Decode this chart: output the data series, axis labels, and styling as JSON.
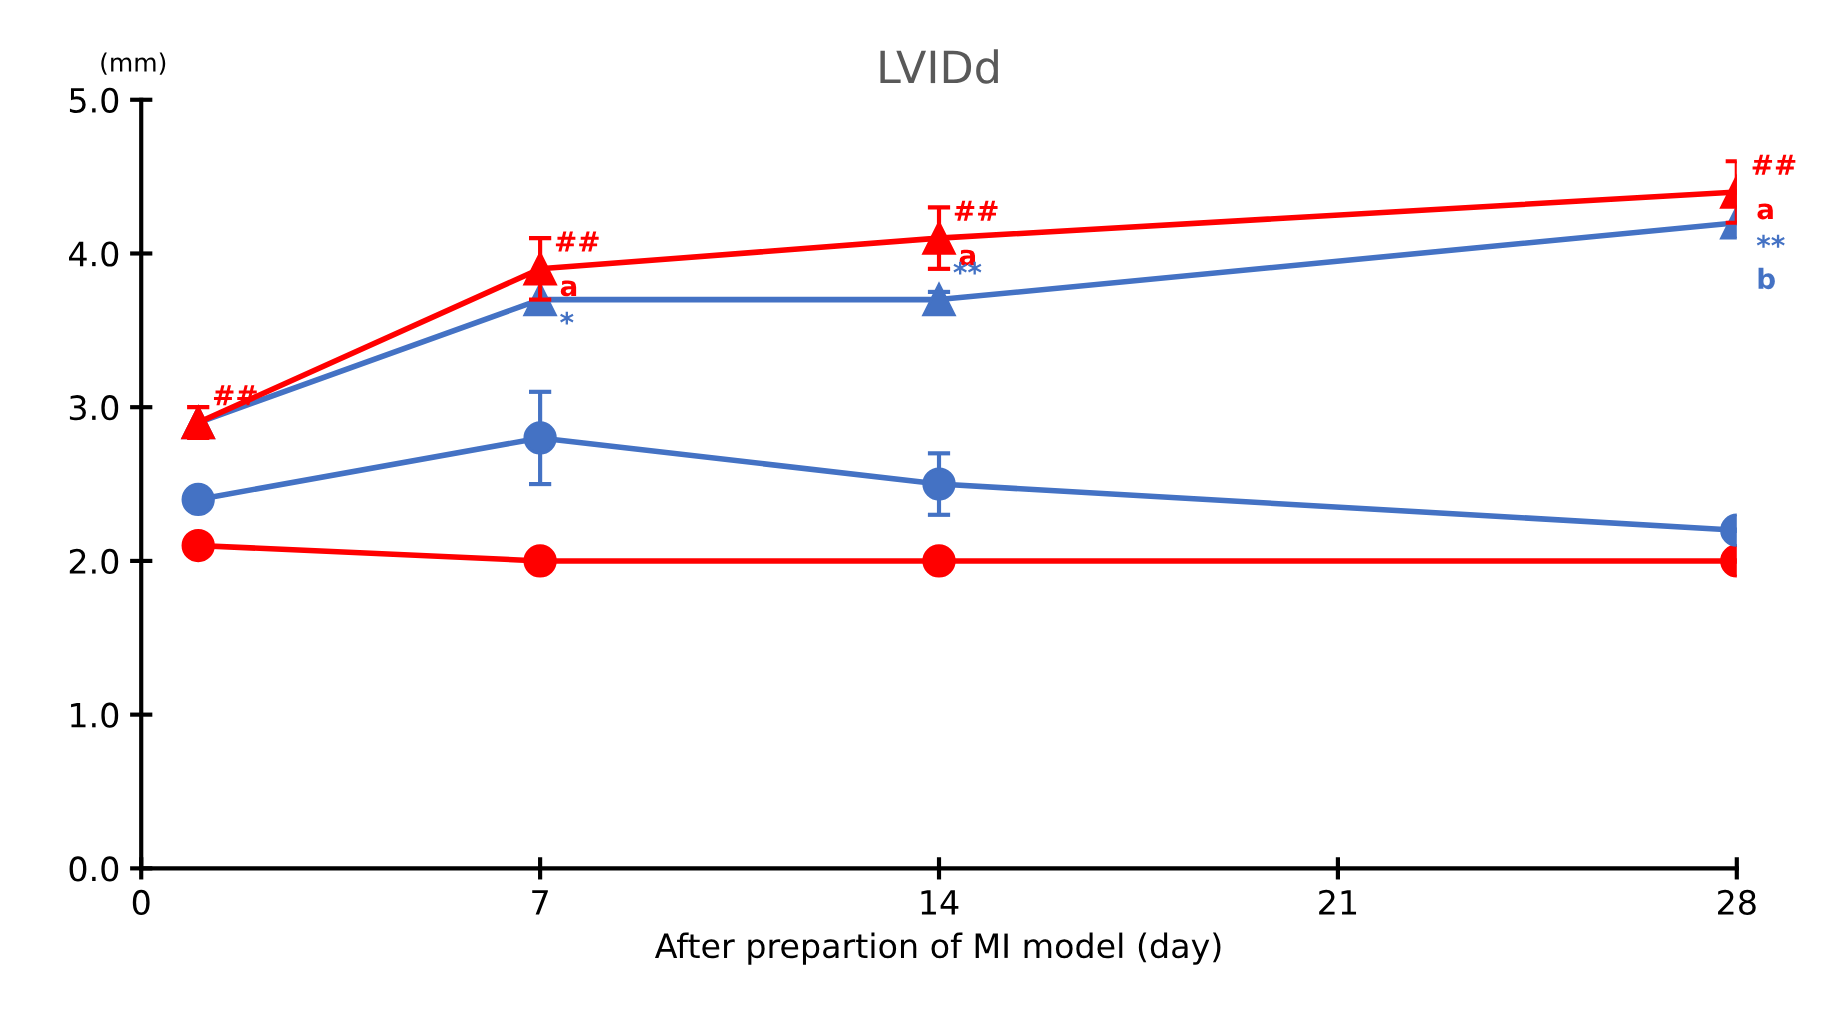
{
  "chart_data": {
    "type": "line",
    "title": "LVIDd",
    "xlabel": "After prepartion of MI model (day)",
    "ylabel": "(mm)",
    "x": [
      1,
      7,
      14,
      28
    ],
    "series": [
      {
        "color": "#ff0000",
        "marker": "triangle",
        "values": [
          2.9,
          3.9,
          4.1,
          4.4
        ],
        "errors": [
          0.1,
          0.2,
          0.2,
          0.2
        ]
      },
      {
        "color": "#4472c4",
        "marker": "triangle",
        "values": [
          2.9,
          3.7,
          3.7,
          4.2
        ],
        "errors": [
          null,
          null,
          0.05,
          null
        ]
      },
      {
        "color": "#4472c4",
        "marker": "circle",
        "values": [
          2.4,
          2.8,
          2.5,
          2.2
        ],
        "errors": [
          null,
          0.3,
          0.2,
          null
        ]
      },
      {
        "color": "#ff0000",
        "marker": "circle",
        "values": [
          2.1,
          2.0,
          2.0,
          2.0
        ],
        "errors": [
          null,
          null,
          null,
          null
        ]
      }
    ],
    "xlim": [
      0,
      28
    ],
    "xticks": [
      0,
      7,
      14,
      21,
      28
    ],
    "ylim": [
      0,
      5
    ],
    "yticks": [
      {
        "value": 0,
        "label": "0.0"
      },
      {
        "value": 1,
        "label": "1.0"
      },
      {
        "value": 2,
        "label": "2.0"
      },
      {
        "value": 3,
        "label": "3.0"
      },
      {
        "value": 4,
        "label": "4.0"
      },
      {
        "value": 5,
        "label": "5.0"
      }
    ],
    "grid": false,
    "legend": false,
    "annotations": [
      {
        "text": "##",
        "x": 1,
        "y": 2.9
      },
      {
        "text": "##",
        "x": 7,
        "y": 3.9
      },
      {
        "text": "a",
        "x": 7,
        "y": 3.9
      },
      {
        "text": "##",
        "x": 14,
        "y": 4.1
      },
      {
        "text": "a",
        "x": 14,
        "y": 4.1
      },
      {
        "text": "##",
        "x": 28,
        "y": 4.4
      },
      {
        "text": "a",
        "x": 28,
        "y": 4.4
      },
      {
        "text": "*",
        "x": 7,
        "y": 3.7
      },
      {
        "text": "**",
        "x": 14,
        "y": 3.7
      },
      {
        "text": "**",
        "x": 28,
        "y": 4.2
      },
      {
        "text": "b",
        "x": 28,
        "y": 4.2
      }
    ]
  }
}
